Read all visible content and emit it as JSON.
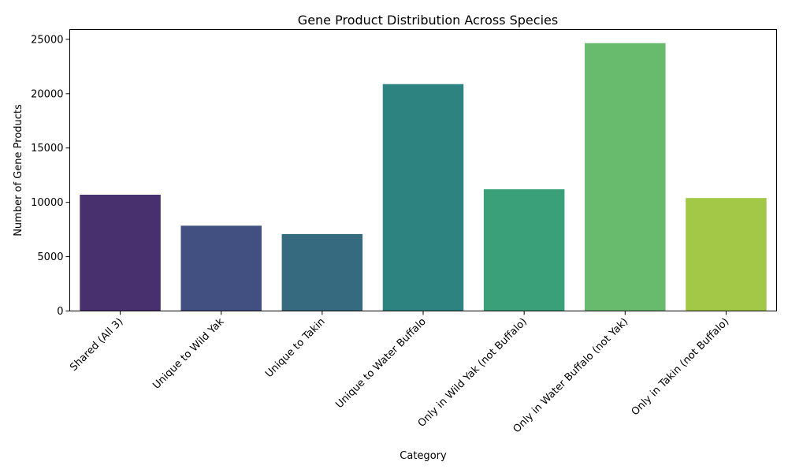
{
  "chart_data": {
    "type": "bar",
    "title": "Gene Product Distribution Across Species",
    "xlabel": "Category",
    "ylabel": "Number of Gene Products",
    "categories": [
      "Shared (All 3)",
      "Unique to Wild Yak",
      "Unique to Takin",
      "Unique to Water Buffalo",
      "Only in Wild Yak (not Buffalo)",
      "Only in Water Buffalo (not Yak)",
      "Only in Takin (not Buffalo)"
    ],
    "values": [
      10700,
      7850,
      7080,
      20880,
      11200,
      24650,
      10400
    ],
    "colors": [
      "#48306e",
      "#415081",
      "#366a7f",
      "#2c8380",
      "#3aa07a",
      "#68bb6c",
      "#a3c847"
    ],
    "ylim": [
      0,
      25900
    ],
    "yticks": [
      0,
      5000,
      10000,
      15000,
      20000,
      25000
    ],
    "ytick_labels": [
      "0",
      "5000",
      "10000",
      "15000",
      "20000",
      "25000"
    ],
    "grid": false,
    "legend": "none"
  }
}
